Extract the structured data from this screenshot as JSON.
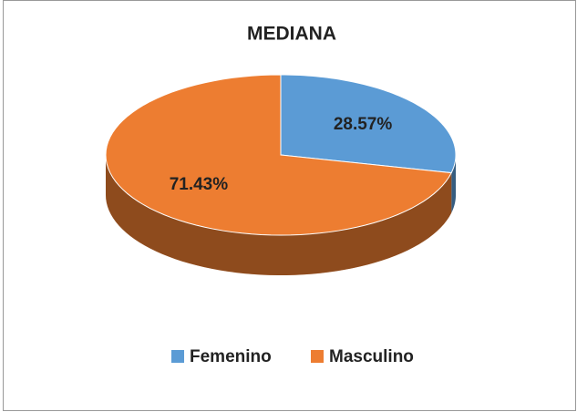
{
  "chart_data": {
    "type": "pie",
    "title": "MEDIANA",
    "categories": [
      "Femenino",
      "Masculino"
    ],
    "values": [
      28.57,
      71.43
    ],
    "value_labels": [
      "28.57%",
      "71.43%"
    ],
    "colors": [
      "#5b9bd5",
      "#ed7d31"
    ],
    "legend": "bottom"
  }
}
